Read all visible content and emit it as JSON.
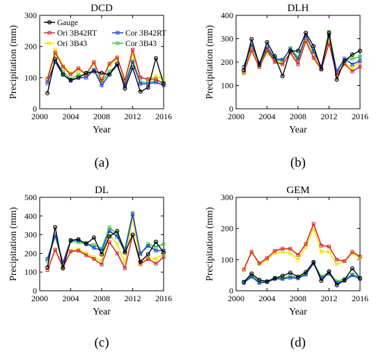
{
  "chart_data": [
    {
      "panel_label": "(a)",
      "type": "line",
      "title": "DCD",
      "xlabel": "Year",
      "ylabel": "Precipitation (mm)",
      "xlim": [
        2000,
        2016
      ],
      "ylim": [
        0,
        300
      ],
      "xticks": [
        2000,
        2004,
        2008,
        2012,
        2016
      ],
      "yticks": [
        0,
        100,
        200,
        300
      ],
      "legend": "top-left",
      "x": [
        2001,
        2002,
        2003,
        2004,
        2005,
        2006,
        2007,
        2008,
        2009,
        2010,
        2011,
        2012,
        2013,
        2014,
        2015,
        2016
      ],
      "series": [
        {
          "name": "Gauge",
          "color": "#000000",
          "values": [
            50,
            160,
            110,
            92,
            100,
            115,
            120,
            115,
            110,
            145,
            65,
            132,
            55,
            68,
            162,
            80
          ]
        },
        {
          "name": "Ori 3B42RT",
          "color": "#d62728",
          "values": [
            95,
            180,
            135,
            110,
            130,
            110,
            150,
            90,
            145,
            165,
            90,
            190,
            100,
            95,
            95,
            80
          ]
        },
        {
          "name": "Cor 3B42RT",
          "color": "#1f3fd6",
          "values": [
            85,
            150,
            110,
            90,
            100,
            100,
            125,
            75,
            110,
            140,
            75,
            150,
            80,
            80,
            85,
            75
          ]
        },
        {
          "name": "Ori 3B43",
          "color": "#e8e800",
          "values": [
            100,
            190,
            140,
            115,
            120,
            115,
            145,
            95,
            140,
            160,
            95,
            175,
            100,
            95,
            105,
            95
          ]
        },
        {
          "name": "Cor 3B43",
          "color": "#33cc33",
          "values": [
            80,
            155,
            120,
            95,
            110,
            105,
            125,
            85,
            120,
            140,
            80,
            155,
            85,
            85,
            90,
            85
          ]
        }
      ]
    },
    {
      "panel_label": "(b)",
      "type": "line",
      "title": "DLH",
      "xlabel": "Year",
      "ylabel": "Precipitation (mm)",
      "xlim": [
        2000,
        2016
      ],
      "ylim": [
        0,
        400
      ],
      "xticks": [
        2000,
        2004,
        2008,
        2012,
        2016
      ],
      "yticks": [
        0,
        100,
        200,
        300,
        400
      ],
      "x": [
        2001,
        2002,
        2003,
        2004,
        2005,
        2006,
        2007,
        2008,
        2009,
        2010,
        2011,
        2012,
        2013,
        2014,
        2015,
        2016
      ],
      "series": [
        {
          "name": "Gauge",
          "color": "#000000",
          "values": [
            165,
            298,
            188,
            285,
            225,
            140,
            248,
            248,
            325,
            268,
            170,
            325,
            125,
            205,
            232,
            248
          ]
        },
        {
          "name": "Ori 3B42RT",
          "color": "#d62728",
          "values": [
            155,
            250,
            178,
            250,
            200,
            190,
            240,
            190,
            290,
            218,
            168,
            280,
            145,
            192,
            160,
            180
          ]
        },
        {
          "name": "Cor 3B42RT",
          "color": "#1f3fd6",
          "values": [
            180,
            275,
            195,
            265,
            215,
            210,
            255,
            210,
            315,
            245,
            180,
            315,
            160,
            215,
            190,
            205
          ]
        },
        {
          "name": "Ori 3B43",
          "color": "#e8e800",
          "values": [
            150,
            265,
            185,
            240,
            205,
            195,
            240,
            205,
            300,
            230,
            170,
            300,
            145,
            195,
            175,
            200
          ]
        },
        {
          "name": "Cor 3B43",
          "color": "#33cc33",
          "values": [
            165,
            270,
            195,
            255,
            210,
            205,
            260,
            220,
            310,
            250,
            175,
            330,
            155,
            210,
            215,
            222
          ]
        }
      ]
    },
    {
      "panel_label": "(c)",
      "type": "line",
      "title": "DL",
      "xlabel": "Year",
      "ylabel": "Precipitation (mm)",
      "xlim": [
        2000,
        2016
      ],
      "ylim": [
        0,
        500
      ],
      "xticks": [
        2000,
        2004,
        2008,
        2012,
        2016
      ],
      "yticks": [
        0,
        100,
        200,
        300,
        400,
        500
      ],
      "x": [
        2001,
        2002,
        2003,
        2004,
        2005,
        2006,
        2007,
        2008,
        2009,
        2010,
        2011,
        2012,
        2013,
        2014,
        2015,
        2016
      ],
      "series": [
        {
          "name": "Gauge",
          "color": "#000000",
          "values": [
            125,
            340,
            120,
            270,
            275,
            250,
            285,
            195,
            290,
            320,
            205,
            300,
            155,
            195,
            262,
            205
          ]
        },
        {
          "name": "Ori 3B42RT",
          "color": "#d62728",
          "values": [
            110,
            220,
            125,
            210,
            215,
            190,
            170,
            140,
            260,
            200,
            120,
            300,
            145,
            170,
            145,
            180
          ]
        },
        {
          "name": "Cor 3B42RT",
          "color": "#1f3fd6",
          "values": [
            170,
            300,
            150,
            270,
            270,
            255,
            230,
            215,
            320,
            290,
            210,
            410,
            200,
            240,
            215,
            215
          ]
        },
        {
          "name": "Ori 3B43",
          "color": "#e8e800",
          "values": [
            110,
            220,
            130,
            215,
            220,
            200,
            180,
            160,
            300,
            250,
            150,
            395,
            140,
            175,
            170,
            200
          ]
        },
        {
          "name": "Cor 3B43",
          "color": "#33cc33",
          "values": [
            160,
            290,
            145,
            265,
            260,
            250,
            245,
            225,
            340,
            300,
            225,
            415,
            195,
            250,
            235,
            250
          ]
        }
      ]
    },
    {
      "panel_label": "(d)",
      "type": "line",
      "title": "GEM",
      "xlabel": "Year",
      "ylabel": "Precipitation (mm)",
      "xlim": [
        2000,
        2016
      ],
      "ylim": [
        0,
        300
      ],
      "xticks": [
        2000,
        2004,
        2008,
        2012,
        2016
      ],
      "yticks": [
        0,
        100,
        200,
        300
      ],
      "x": [
        2001,
        2002,
        2003,
        2004,
        2005,
        2006,
        2007,
        2008,
        2009,
        2010,
        2011,
        2012,
        2013,
        2014,
        2015,
        2016
      ],
      "series": [
        {
          "name": "Gauge",
          "color": "#000000",
          "values": [
            28,
            55,
            35,
            30,
            40,
            48,
            58,
            45,
            60,
            92,
            32,
            62,
            18,
            35,
            72,
            40
          ]
        },
        {
          "name": "Ori 3B42RT",
          "color": "#d62728",
          "values": [
            68,
            125,
            88,
            105,
            128,
            135,
            135,
            115,
            150,
            215,
            145,
            142,
            100,
            95,
            125,
            110
          ]
        },
        {
          "name": "Cor 3B42RT",
          "color": "#1f3fd6",
          "values": [
            25,
            45,
            25,
            28,
            38,
            38,
            42,
            40,
            52,
            88,
            40,
            55,
            25,
            32,
            50,
            38
          ]
        },
        {
          "name": "Ori 3B43",
          "color": "#e8e800",
          "values": [
            65,
            125,
            85,
            100,
            120,
            125,
            120,
            100,
            140,
            200,
            125,
            125,
            85,
            95,
            120,
            105
          ]
        },
        {
          "name": "Cor 3B43",
          "color": "#33cc33",
          "values": [
            28,
            50,
            28,
            30,
            42,
            40,
            48,
            42,
            55,
            90,
            45,
            60,
            30,
            38,
            52,
            42
          ]
        }
      ]
    }
  ]
}
